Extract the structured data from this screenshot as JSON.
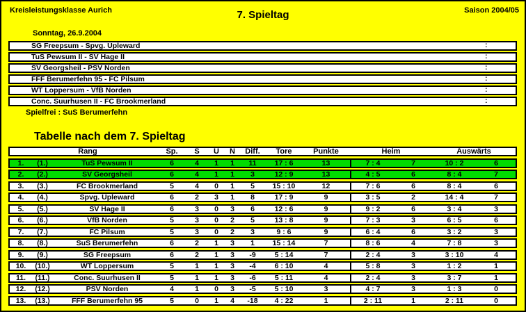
{
  "page": {
    "league": "Kreisleistungsklasse Aurich",
    "title": "7. Spieltag",
    "season": "Saison 2004/05"
  },
  "fixtures": {
    "date": "Sonntag, 26.9.2004",
    "matches": [
      {
        "teams": "SG Freepsum - Spvg. Upleward",
        "result": ":"
      },
      {
        "teams": "TuS Pewsum II - SV Hage II",
        "result": ":"
      },
      {
        "teams": "SV Georgsheil - PSV Norden",
        "result": ":"
      },
      {
        "teams": "FFF Berumerfehn 95 - FC Pilsum",
        "result": ":"
      },
      {
        "teams": "WT Loppersum - VfB Norden",
        "result": ":"
      },
      {
        "teams": "Conc. Suurhusen II - FC Brookmerland",
        "result": ":"
      }
    ],
    "bye": "Spielfrei : SuS Berumerfehn"
  },
  "table": {
    "title": "Tabelle nach dem 7. Spieltag",
    "headers": {
      "rang": "Rang",
      "sp": "Sp.",
      "s": "S",
      "u": "U",
      "n": "N",
      "diff": "Diff.",
      "tore": "Tore",
      "punkte": "Punkte",
      "heim": "Heim",
      "auswaerts": "Auswärts"
    },
    "rows": [
      {
        "rank": "1.",
        "prev": "(1.)",
        "team": "TuS Pewsum II",
        "sp": "6",
        "s": "4",
        "u": "1",
        "n": "1",
        "diff": "11",
        "tore": "17 : 6",
        "punkte": "13",
        "heim_tore": "7 : 4",
        "heim_punkte": "7",
        "ausw_tore": "10 : 2",
        "ausw_punkte": "6",
        "highlight": true
      },
      {
        "rank": "2.",
        "prev": "(2.)",
        "team": "SV Georgsheil",
        "sp": "6",
        "s": "4",
        "u": "1",
        "n": "1",
        "diff": "3",
        "tore": "12 : 9",
        "punkte": "13",
        "heim_tore": "4 : 5",
        "heim_punkte": "6",
        "ausw_tore": "8 : 4",
        "ausw_punkte": "7",
        "highlight": true
      },
      {
        "rank": "3.",
        "prev": "(3.)",
        "team": "FC Brookmerland",
        "sp": "5",
        "s": "4",
        "u": "0",
        "n": "1",
        "diff": "5",
        "tore": "15 : 10",
        "punkte": "12",
        "heim_tore": "7 : 6",
        "heim_punkte": "6",
        "ausw_tore": "8 : 4",
        "ausw_punkte": "6",
        "highlight": false
      },
      {
        "rank": "4.",
        "prev": "(4.)",
        "team": "Spvg. Upleward",
        "sp": "6",
        "s": "2",
        "u": "3",
        "n": "1",
        "diff": "8",
        "tore": "17 : 9",
        "punkte": "9",
        "heim_tore": "3 : 5",
        "heim_punkte": "2",
        "ausw_tore": "14 : 4",
        "ausw_punkte": "7",
        "highlight": false
      },
      {
        "rank": "5.",
        "prev": "(5.)",
        "team": "SV Hage II",
        "sp": "6",
        "s": "3",
        "u": "0",
        "n": "3",
        "diff": "6",
        "tore": "12 : 6",
        "punkte": "9",
        "heim_tore": "9 : 2",
        "heim_punkte": "6",
        "ausw_tore": "3 : 4",
        "ausw_punkte": "3",
        "highlight": false
      },
      {
        "rank": "6.",
        "prev": "(6.)",
        "team": "VfB Norden",
        "sp": "5",
        "s": "3",
        "u": "0",
        "n": "2",
        "diff": "5",
        "tore": "13 : 8",
        "punkte": "9",
        "heim_tore": "7 : 3",
        "heim_punkte": "3",
        "ausw_tore": "6 : 5",
        "ausw_punkte": "6",
        "highlight": false
      },
      {
        "rank": "7.",
        "prev": "(7.)",
        "team": "FC Pilsum",
        "sp": "5",
        "s": "3",
        "u": "0",
        "n": "2",
        "diff": "3",
        "tore": "9 : 6",
        "punkte": "9",
        "heim_tore": "6 : 4",
        "heim_punkte": "6",
        "ausw_tore": "3 : 2",
        "ausw_punkte": "3",
        "highlight": false
      },
      {
        "rank": "8.",
        "prev": "(8.)",
        "team": "SuS Berumerfehn",
        "sp": "6",
        "s": "2",
        "u": "1",
        "n": "3",
        "diff": "1",
        "tore": "15 : 14",
        "punkte": "7",
        "heim_tore": "8 : 6",
        "heim_punkte": "4",
        "ausw_tore": "7 : 8",
        "ausw_punkte": "3",
        "highlight": false
      },
      {
        "rank": "9.",
        "prev": "(9.)",
        "team": "SG Freepsum",
        "sp": "6",
        "s": "2",
        "u": "1",
        "n": "3",
        "diff": "-9",
        "tore": "5 : 14",
        "punkte": "7",
        "heim_tore": "2 : 4",
        "heim_punkte": "3",
        "ausw_tore": "3 : 10",
        "ausw_punkte": "4",
        "highlight": false
      },
      {
        "rank": "10.",
        "prev": "(10.)",
        "team": "WT Loppersum",
        "sp": "5",
        "s": "1",
        "u": "1",
        "n": "3",
        "diff": "-4",
        "tore": "6 : 10",
        "punkte": "4",
        "heim_tore": "5 : 8",
        "heim_punkte": "3",
        "ausw_tore": "1 : 2",
        "ausw_punkte": "1",
        "highlight": false
      },
      {
        "rank": "11.",
        "prev": "(11.)",
        "team": "Conc. Suurhusen II",
        "sp": "5",
        "s": "1",
        "u": "1",
        "n": "3",
        "diff": "-6",
        "tore": "5 : 11",
        "punkte": "4",
        "heim_tore": "2 : 4",
        "heim_punkte": "3",
        "ausw_tore": "3 : 7",
        "ausw_punkte": "1",
        "highlight": false
      },
      {
        "rank": "12.",
        "prev": "(12.)",
        "team": "PSV Norden",
        "sp": "4",
        "s": "1",
        "u": "0",
        "n": "3",
        "diff": "-5",
        "tore": "5 : 10",
        "punkte": "3",
        "heim_tore": "4 : 7",
        "heim_punkte": "3",
        "ausw_tore": "1 : 3",
        "ausw_punkte": "0",
        "highlight": false
      },
      {
        "rank": "13.",
        "prev": "(13.)",
        "team": "FFF Berumerfehn 95",
        "sp": "5",
        "s": "0",
        "u": "1",
        "n": "4",
        "diff": "-18",
        "tore": "4 : 22",
        "punkte": "1",
        "heim_tore": "2 : 11",
        "heim_punkte": "1",
        "ausw_tore": "2 : 11",
        "ausw_punkte": "0",
        "highlight": false
      }
    ]
  },
  "colors": {
    "background": "#FFFF00",
    "row_background": "#FFFFFF",
    "highlight_green": "#00DC00",
    "border": "#000000",
    "text": "#000000"
  }
}
